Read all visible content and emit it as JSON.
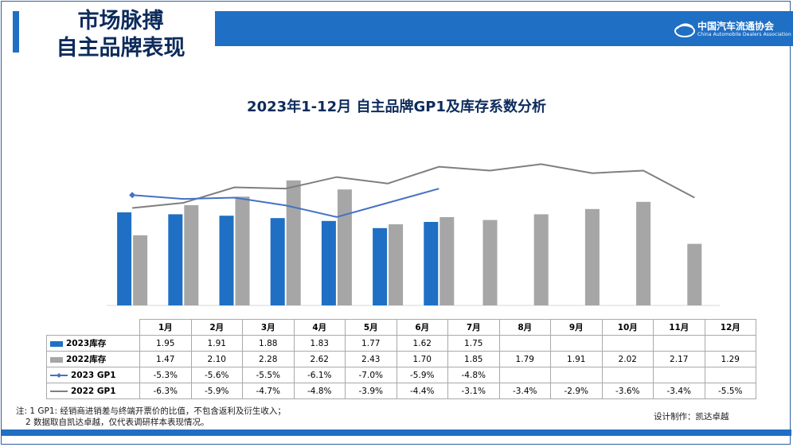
{
  "header": {
    "title_line1": "市场脉搏",
    "title_line2": "自主品牌表现"
  },
  "logo": {
    "cn": "中国汽车流通协会",
    "en": "China Automobile Dealers Association"
  },
  "colors": {
    "brand_blue": "#1f6fc4",
    "bar_2022": "#a6a6a6",
    "line_2023": "#4472c4",
    "line_2022": "#7f7f7f"
  },
  "chart_data": {
    "type": "bar",
    "title": "2023年1-12月 自主品牌GP1及库存系数分析",
    "categories": [
      "1月",
      "2月",
      "3月",
      "4月",
      "5月",
      "6月",
      "7月",
      "8月",
      "9月",
      "10月",
      "11月",
      "12月"
    ],
    "series": [
      {
        "name": "2023库存",
        "kind": "bar",
        "values": [
          1.95,
          1.91,
          1.88,
          1.83,
          1.77,
          1.62,
          1.75,
          null,
          null,
          null,
          null,
          null
        ]
      },
      {
        "name": "2022库存",
        "kind": "bar",
        "values": [
          1.47,
          2.1,
          2.28,
          2.62,
          2.43,
          1.7,
          1.85,
          1.79,
          1.91,
          2.02,
          2.17,
          1.29
        ]
      },
      {
        "name": "2023 GP1",
        "kind": "line",
        "values": [
          -5.3,
          -5.6,
          -5.5,
          -6.1,
          -7.0,
          -5.9,
          -4.8,
          null,
          null,
          null,
          null,
          null
        ]
      },
      {
        "name": "2022 GP1",
        "kind": "line",
        "values": [
          -6.3,
          -5.9,
          -4.7,
          -4.8,
          -3.9,
          -4.4,
          -3.1,
          -3.4,
          -2.9,
          -3.6,
          -3.4,
          -5.5
        ]
      }
    ],
    "table_rows": [
      [
        "1.95",
        "1.91",
        "1.88",
        "1.83",
        "1.77",
        "1.62",
        "1.75",
        "",
        "",
        "",
        "",
        ""
      ],
      [
        "1.47",
        "2.10",
        "2.28",
        "2.62",
        "2.43",
        "1.70",
        "1.85",
        "1.79",
        "1.91",
        "2.02",
        "2.17",
        "1.29"
      ],
      [
        "-5.3%",
        "-5.6%",
        "-5.5%",
        "-6.1%",
        "-7.0%",
        "-5.9%",
        "-4.8%",
        "",
        "",
        "",
        "",
        ""
      ],
      [
        "-6.3%",
        "-5.9%",
        "-4.7%",
        "-4.8%",
        "-3.9%",
        "-4.4%",
        "-3.1%",
        "-3.4%",
        "-2.9%",
        "-3.6%",
        "-3.4%",
        "-5.5%"
      ]
    ],
    "bar_axis": [
      0,
      3.0
    ],
    "line_axis": [
      -9,
      0
    ]
  },
  "footer": {
    "note1": "注: 1  GP1: 经销商进销差与终端开票价的比值，不包含返利及衍生收入；",
    "note2": "2 数据取自凯达卓越，仅代表调研样本表现情况。",
    "design": "设计制作：凯达卓越"
  }
}
